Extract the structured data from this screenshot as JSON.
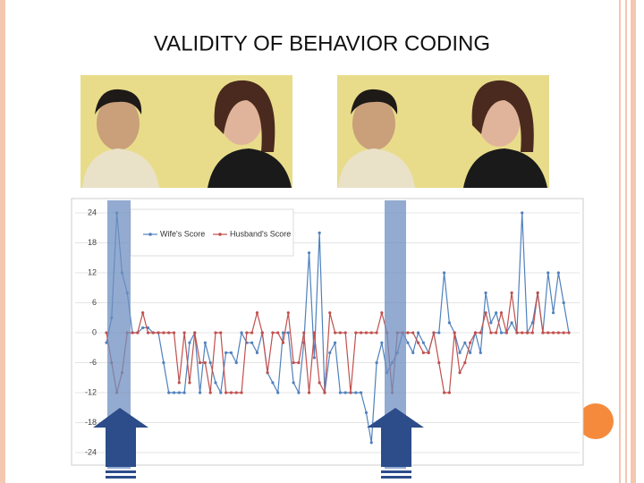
{
  "chart_data": {
    "type": "line",
    "title": "VALIDITY OF BEHAVIOR CODING",
    "ylim": [
      -24,
      24
    ],
    "yticks": [
      24,
      18,
      12,
      6,
      0,
      -6,
      -12,
      -18,
      -24
    ],
    "grid": true,
    "legend": "top-left",
    "series": [
      {
        "name": "Wife's Score",
        "color": "#4f81bd",
        "values": [
          -2,
          3,
          24,
          12,
          8,
          0,
          0,
          1,
          1,
          0,
          0,
          -6,
          -12,
          -12,
          -12,
          -12,
          -2,
          0,
          -12,
          -2,
          -6,
          -10,
          -12,
          -4,
          -4,
          -6,
          0,
          -2,
          -2,
          -4,
          0,
          -8,
          -10,
          -12,
          0,
          0,
          -10,
          -12,
          -2,
          16,
          -5,
          20,
          -12,
          -4,
          -2,
          -12,
          -12,
          -12,
          -12,
          -12,
          -16,
          -22,
          -6,
          -2,
          -8,
          -6,
          -4,
          0,
          -2,
          -4,
          0,
          -2,
          -4,
          0,
          0,
          12,
          2,
          0,
          -4,
          -2,
          -4,
          0,
          -4,
          8,
          2,
          4,
          0,
          0,
          2,
          0,
          24,
          0,
          2,
          8,
          0,
          12,
          4,
          12,
          6,
          0
        ]
      },
      {
        "name": "Husband's Score",
        "color": "#c0504d",
        "values": [
          0,
          -6,
          -12,
          -8,
          0,
          0,
          0,
          4,
          0,
          0,
          0,
          0,
          0,
          0,
          -10,
          0,
          -10,
          0,
          -6,
          -6,
          -12,
          0,
          0,
          -12,
          -12,
          -12,
          -12,
          0,
          0,
          4,
          0,
          -8,
          0,
          0,
          -2,
          4,
          -6,
          -6,
          0,
          -12,
          0,
          -10,
          -12,
          4,
          0,
          0,
          0,
          -12,
          0,
          0,
          0,
          0,
          0,
          4,
          0,
          -12,
          0,
          0,
          0,
          0,
          -2,
          -4,
          -4,
          0,
          -6,
          -12,
          -12,
          0,
          -8,
          -6,
          -2,
          0,
          0,
          4,
          0,
          0,
          4,
          0,
          8,
          0,
          0,
          0,
          0,
          8,
          0,
          0,
          0,
          0,
          0,
          0
        ]
      }
    ]
  }
}
